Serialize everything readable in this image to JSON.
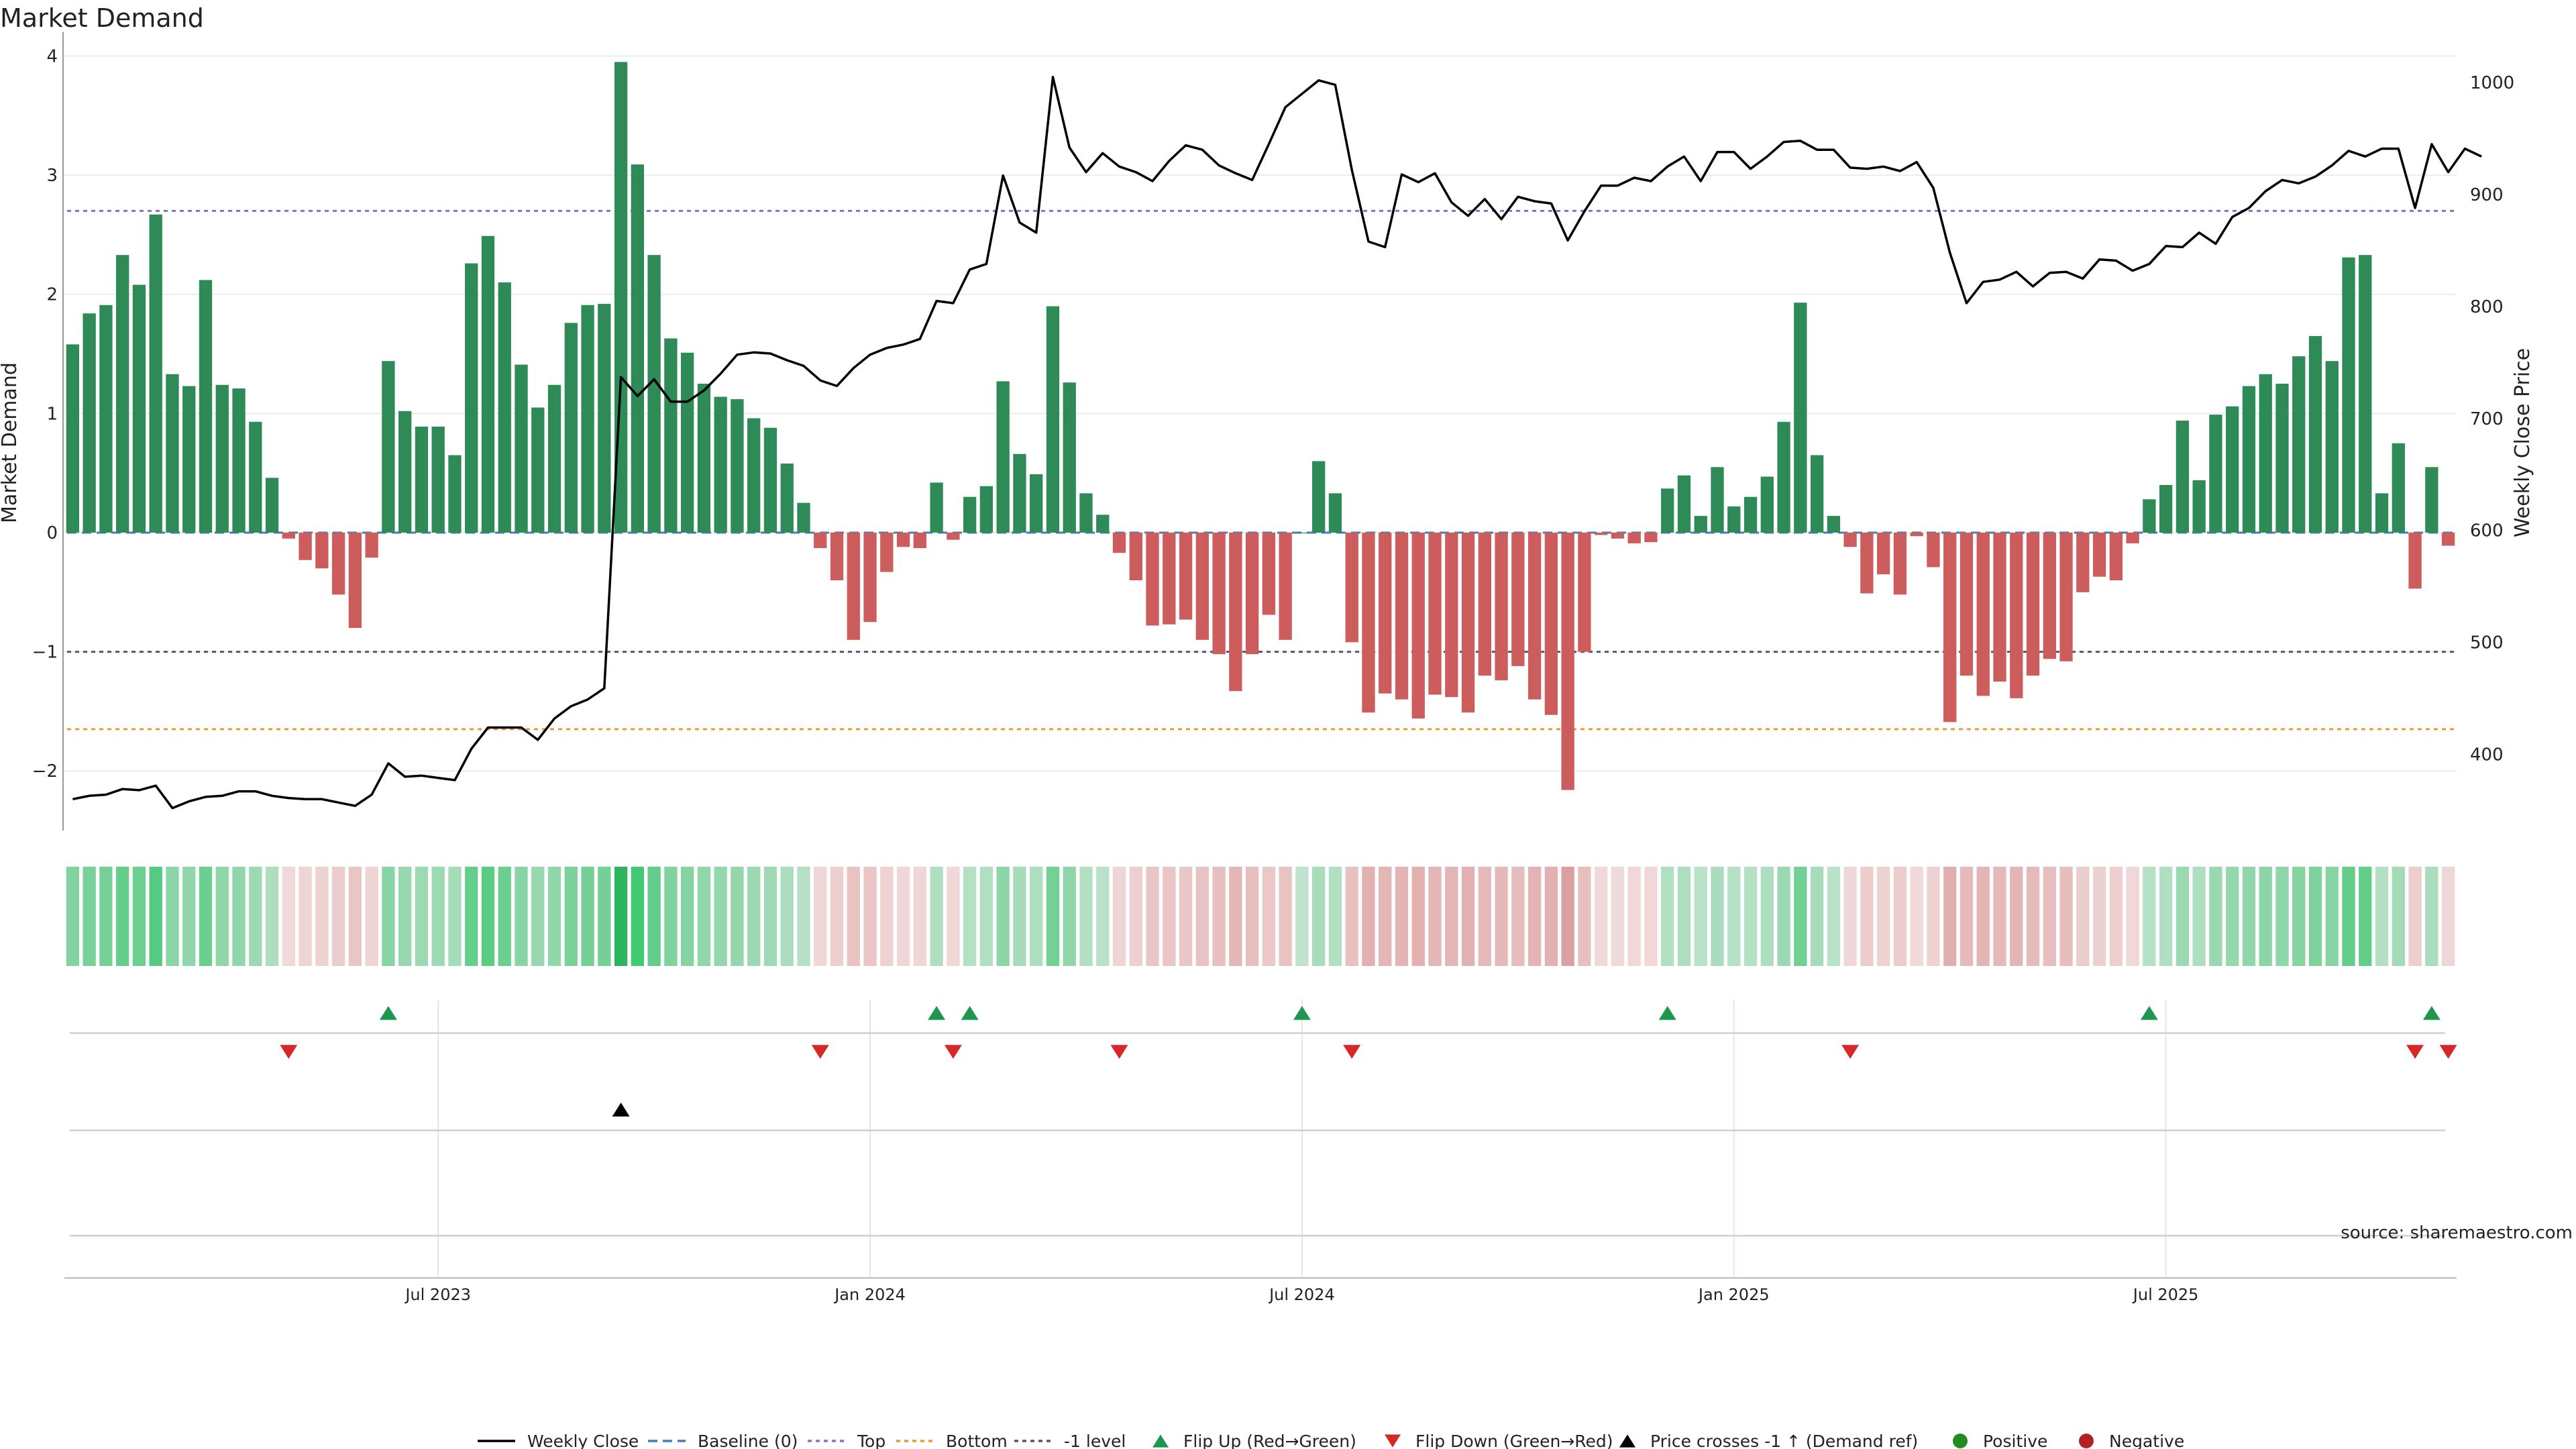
{
  "chart_data": {
    "type": "bar",
    "title": "Market Demand",
    "ylabel": "Market Demand",
    "y2label": "Weekly Close Price",
    "ylim": [
      -2.5,
      4.2
    ],
    "y2lim": [
      332,
      1045
    ],
    "yticks": [
      -2,
      -1,
      0,
      1,
      2,
      3,
      4
    ],
    "yticklabels": [
      "−2",
      "−1",
      "0",
      "1",
      "2",
      "3",
      "4"
    ],
    "y2ticks": [
      400,
      500,
      600,
      700,
      800,
      900,
      1000
    ],
    "y2ticklabels": [
      "400",
      "500",
      "600",
      "700",
      "800",
      "900",
      "1000"
    ],
    "xticks": [
      "Jul 2023",
      "Jan 2024",
      "Jul 2024",
      "Jan 2025",
      "Jul 2025"
    ],
    "reference_lines": {
      "baseline": 0,
      "top": 2.7,
      "minus_one": -1,
      "bottom": -1.65
    },
    "demand": [
      1.58,
      1.84,
      1.91,
      2.33,
      2.08,
      2.67,
      1.33,
      1.23,
      2.12,
      1.24,
      1.21,
      0.93,
      0.46,
      -0.05,
      -0.23,
      -0.3,
      -0.52,
      -0.8,
      -0.21,
      1.44,
      1.02,
      0.89,
      0.89,
      0.65,
      2.26,
      2.49,
      2.1,
      1.41,
      1.05,
      1.24,
      1.76,
      1.91,
      1.92,
      3.95,
      3.09,
      2.33,
      1.63,
      1.51,
      1.25,
      1.14,
      1.12,
      0.96,
      0.88,
      0.58,
      0.25,
      -0.13,
      -0.4,
      -0.9,
      -0.75,
      -0.33,
      -0.12,
      -0.13,
      0.42,
      -0.06,
      0.3,
      0.39,
      1.27,
      0.66,
      0.49,
      1.9,
      1.26,
      0.33,
      0.15,
      -0.17,
      -0.4,
      -0.78,
      -0.77,
      -0.73,
      -0.9,
      -1.02,
      -1.33,
      -1.02,
      -0.69,
      -0.9,
      0.0,
      0.6,
      0.33,
      -0.92,
      -1.51,
      -1.35,
      -1.4,
      -1.56,
      -1.36,
      -1.38,
      -1.51,
      -1.2,
      -1.24,
      -1.12,
      -1.4,
      -1.53,
      -2.16,
      -1.0,
      -0.02,
      -0.05,
      -0.09,
      -0.08,
      0.37,
      0.48,
      0.14,
      0.55,
      0.22,
      0.3,
      0.47,
      0.93,
      1.93,
      0.65,
      0.14,
      -0.12,
      -0.51,
      -0.35,
      -0.52,
      -0.03,
      -0.29,
      -1.59,
      -1.2,
      -1.37,
      -1.25,
      -1.39,
      -1.2,
      -1.06,
      -1.08,
      -0.5,
      -0.37,
      -0.4,
      -0.09,
      0.28,
      0.4,
      0.94,
      0.44,
      0.99,
      1.06,
      1.23,
      1.33,
      1.25,
      1.48,
      1.65,
      1.44,
      2.31,
      2.33,
      0.33,
      0.75,
      -0.47,
      0.55,
      -0.11
    ],
    "close": [
      360,
      363,
      364,
      369,
      368,
      372,
      352,
      358,
      362,
      363,
      367,
      367,
      363,
      361,
      360,
      360,
      357,
      354,
      364,
      392,
      380,
      381,
      379,
      377,
      405,
      424,
      424,
      424,
      413,
      432,
      443,
      449,
      459,
      737,
      720,
      735,
      715,
      715,
      725,
      740,
      757,
      759,
      758,
      752,
      747,
      734,
      729,
      745,
      757,
      763,
      766,
      771,
      805,
      803,
      833,
      838,
      917,
      875,
      866,
      1005,
      942,
      920,
      937,
      925,
      920,
      912,
      930,
      944,
      940,
      926,
      919,
      913,
      945,
      978,
      990,
      1002,
      998,
      922,
      858,
      853,
      918,
      911,
      919,
      893,
      881,
      896,
      878,
      898,
      894,
      892,
      859,
      885,
      908,
      908,
      915,
      912,
      925,
      934,
      912,
      938,
      938,
      923,
      934,
      947,
      948,
      940,
      940,
      924,
      923,
      925,
      921,
      929,
      906,
      848,
      803,
      822,
      824,
      831,
      818,
      830,
      831,
      825,
      842,
      841,
      832,
      838,
      854,
      853,
      866,
      856,
      880,
      888,
      903,
      913,
      910,
      916,
      926,
      939,
      934,
      941,
      941,
      888,
      945,
      920,
      941,
      934
    ],
    "flip_up_indices": [
      19,
      52,
      54,
      74,
      96,
      125,
      142
    ],
    "flip_down_indices": [
      13,
      45,
      53,
      63,
      77,
      107,
      141,
      143
    ],
    "price_cross_indices": [
      33
    ],
    "legend": [
      "Weekly Close",
      "Baseline (0)",
      "Top",
      "Bottom",
      "-1 level",
      "Flip Up (Red→Green)",
      "Flip Down (Green→Red)",
      "Price crosses -1 ↑ (Demand ref)",
      "Positive",
      "Negative"
    ],
    "legend_placement": "bottom-center",
    "annotation": "source: sharemaestro.com"
  },
  "colors": {
    "positive_bar": "#2e8b57",
    "negative_bar": "#cd5c5c",
    "price_line": "#000000",
    "baseline": "#4a7ab8",
    "top": "#7a7ac4",
    "bottom": "#e89a30",
    "minus_one": "#55557a",
    "flip_up": "#1e9650",
    "flip_down": "#d62828",
    "cross": "#000000",
    "positive_dot": "#228b22",
    "negative_dot": "#b22222",
    "grid": "#e6e6e6",
    "source_text": "#888888"
  }
}
